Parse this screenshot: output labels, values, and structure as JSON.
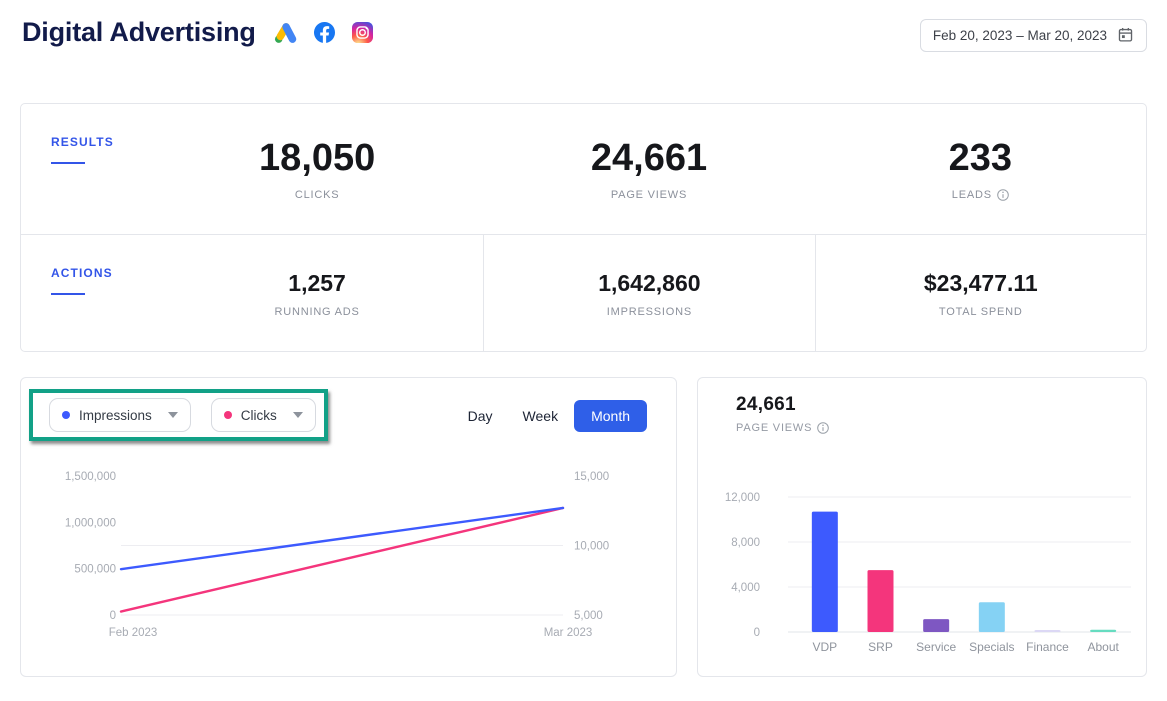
{
  "header": {
    "title": "Digital Advertising",
    "icons": [
      {
        "name": "google-ads"
      },
      {
        "name": "facebook"
      },
      {
        "name": "instagram"
      }
    ],
    "date_range": "Feb 20, 2023 – Mar 20, 2023"
  },
  "summary": {
    "results_label": "RESULTS",
    "results_metrics": [
      {
        "value": "18,050",
        "label": "CLICKS"
      },
      {
        "value": "24,661",
        "label": "PAGE VIEWS"
      },
      {
        "value": "233",
        "label": "LEADS"
      }
    ],
    "actions_label": "ACTIONS",
    "actions_metrics": [
      {
        "value": "1,257",
        "label": "RUNNING ADS"
      },
      {
        "value": "1,642,860",
        "label": "IMPRESSIONS"
      },
      {
        "value": "$23,477.11",
        "label": "TOTAL SPEND"
      }
    ]
  },
  "trend_panel": {
    "selectors": [
      {
        "label": "Impressions",
        "color": "#3D5AFE"
      },
      {
        "label": "Clicks",
        "color": "#F4357C"
      }
    ],
    "granularity": [
      "Day",
      "Week",
      "Month"
    ],
    "granularity_selected": "Month",
    "highlight_color": "#12A187"
  },
  "pageviews_panel": {
    "value": "24,661",
    "label": "PAGE VIEWS"
  },
  "chart_data": [
    {
      "type": "line",
      "title": "Impressions and Clicks by month",
      "x_labels": [
        "Feb 2023",
        "Mar 2023"
      ],
      "series": [
        {
          "name": "Impressions",
          "axis": "left",
          "color": "#3D5AFE",
          "values": [
            495000,
            1155000
          ]
        },
        {
          "name": "Clicks",
          "axis": "right",
          "color": "#F4357C",
          "values": [
            5250,
            12700
          ]
        }
      ],
      "left_axis": {
        "min": 0,
        "max": 1500000,
        "tick_values": [
          1500000,
          1000000,
          500000,
          0
        ],
        "tick_labels": [
          "1,500,000",
          "1,000,000",
          "500,000",
          "0"
        ]
      },
      "right_axis": {
        "min": 5000,
        "max": 15000,
        "tick_values": [
          15000,
          10000,
          5000
        ],
        "tick_labels": [
          "15,000",
          "10,000",
          "5,000"
        ]
      },
      "gridline_values_right_axis": [
        10000,
        5000
      ],
      "legend_position": "top-left-dropdowns",
      "grid": true
    },
    {
      "type": "bar",
      "title": "Page views by page",
      "categories": [
        "VDP",
        "SRP",
        "Service",
        "Specials",
        "Finance",
        "About"
      ],
      "values": [
        10700,
        5500,
        1150,
        2650,
        180,
        200
      ],
      "colors": [
        "#3D5AFE",
        "#F4357C",
        "#7E57C2",
        "#85D2F4",
        "#DCD8F5",
        "#66DCC0"
      ],
      "yaxis": {
        "min": 0,
        "max": 12800,
        "tick_values": [
          12000,
          8000,
          4000,
          0
        ],
        "tick_labels": [
          "12,000",
          "8,000",
          "4,000",
          "0"
        ]
      },
      "xlabel": "",
      "ylabel": "",
      "grid": true
    }
  ]
}
